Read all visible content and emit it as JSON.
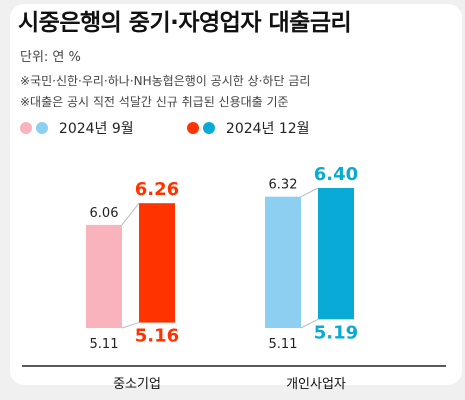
{
  "title": "시중은행의 중기·자영업자 대출금리",
  "unit_label": "단위: 연 %",
  "notes": [
    "※국민·신한·우리·하나·NH농협은행이 공시한 상·하단 금리",
    "※대출은 공시 직전 석달간 신규 취급된 신용대출 기준"
  ],
  "legend": [
    {
      "label": "2024년 9월",
      "colors": [
        "#f8b3bd",
        "#8dcff0"
      ]
    },
    {
      "label": "2024년 12월",
      "colors": [
        "#ff3300",
        "#0aaad6"
      ]
    }
  ],
  "chart_data": {
    "type": "bar",
    "title": "시중은행의 중기·자영업자 대출금리",
    "unit": "연 %",
    "categories": [
      "중소기업",
      "개인사업자"
    ],
    "series": [
      {
        "name": "2024년 9월",
        "low": [
          5.11,
          5.11
        ],
        "high": [
          6.06,
          6.32
        ],
        "colors": [
          "#f8b3bd",
          "#8dcff0"
        ]
      },
      {
        "name": "2024년 12월",
        "low": [
          5.16,
          5.19
        ],
        "high": [
          6.26,
          6.4
        ],
        "colors": [
          "#ff3300",
          "#0aaad6"
        ]
      }
    ],
    "ylim": [
      5.11,
      6.4
    ],
    "legend_position": "top-left"
  }
}
